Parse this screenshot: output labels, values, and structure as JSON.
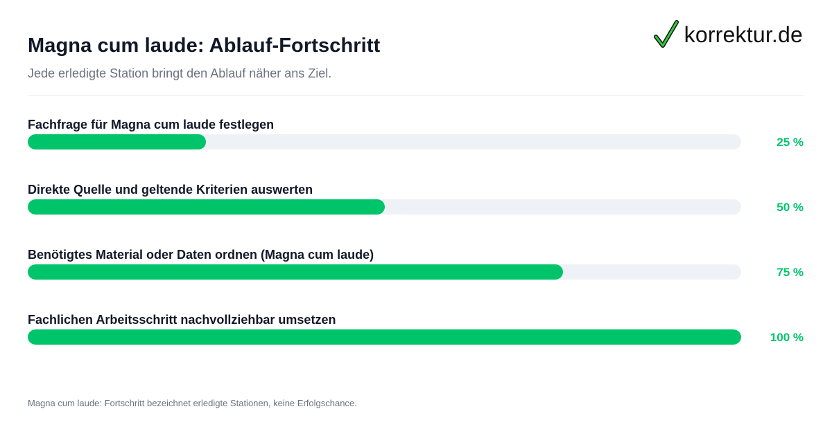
{
  "header": {
    "title": "Magna cum laude: Ablauf-Fortschritt",
    "subtitle": "Jede erledigte Station bringt den Ablauf näher ans Ziel."
  },
  "logo": {
    "text": "korrektur.de",
    "icon": "checkmark-icon",
    "check_color": "#2ecc40"
  },
  "colors": {
    "accent": "#00c46a",
    "track": "#eef2f7"
  },
  "chart_data": {
    "type": "bar",
    "orientation": "horizontal",
    "categories": [
      "Fachfrage für Magna cum laude festlegen",
      "Direkte Quelle und geltende Kriterien auswerten",
      "Benötigtes Material oder Daten ordnen (Magna cum laude)",
      "Fachlichen Arbeitsschritt nachvollziehbar umsetzen"
    ],
    "values": [
      25,
      50,
      75,
      100
    ],
    "value_labels": [
      "25 %",
      "50 %",
      "75 %",
      "100 %"
    ],
    "xlim": [
      0,
      100
    ]
  },
  "footnote": "Magna cum laude: Fortschritt bezeichnet erledigte Stationen, keine Erfolgschance."
}
